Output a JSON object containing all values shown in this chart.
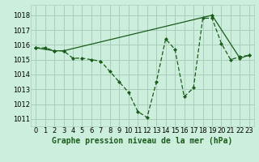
{
  "title": "Graphe pression niveau de la mer (hPa)",
  "bg_color": "#cceedd",
  "grid_color": "#aaccbb",
  "line_color": "#1a5c1a",
  "marker_color": "#1a5c1a",
  "xlim": [
    -0.5,
    23.5
  ],
  "ylim": [
    1010.5,
    1018.7
  ],
  "yticks": [
    1011,
    1012,
    1013,
    1014,
    1015,
    1016,
    1017,
    1018
  ],
  "xticks": [
    0,
    1,
    2,
    3,
    4,
    5,
    6,
    7,
    8,
    9,
    10,
    11,
    12,
    13,
    14,
    15,
    16,
    17,
    18,
    19,
    20,
    21,
    22,
    23
  ],
  "series_dashed_x": [
    0,
    1,
    2,
    3,
    4,
    5,
    6,
    7,
    8,
    9,
    10,
    11,
    12,
    13,
    14,
    15,
    16,
    17,
    18,
    19,
    20,
    21,
    22,
    23
  ],
  "series_dashed_y": [
    1015.8,
    1015.8,
    1015.6,
    1015.6,
    1015.1,
    1015.1,
    1015.0,
    1014.9,
    1014.2,
    1013.5,
    1012.8,
    1011.5,
    1011.1,
    1013.5,
    1016.4,
    1015.7,
    1012.5,
    1013.1,
    1017.8,
    1017.8,
    1016.1,
    1015.0,
    1015.2,
    1015.3
  ],
  "series_solid_x": [
    0,
    2,
    3,
    19,
    22,
    23
  ],
  "series_solid_y": [
    1015.8,
    1015.6,
    1015.6,
    1018.0,
    1015.1,
    1015.3
  ],
  "xlabel_fontsize": 7,
  "tick_fontsize": 6
}
